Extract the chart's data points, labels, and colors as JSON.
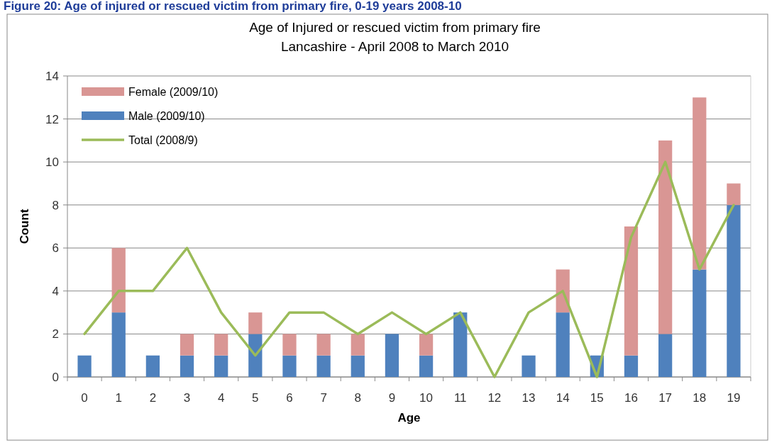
{
  "chart_data": {
    "type": "bar",
    "title": "Figure 20: Age of injured or rescued victim from primary fire, 0-19 years 2008-10",
    "subtitle": "Age of Injured or rescued victim from primary fire\nLancashire - April 2008 to March 2010",
    "xlabel": "Age",
    "ylabel": "Count",
    "categories": [
      "0",
      "1",
      "2",
      "3",
      "4",
      "5",
      "6",
      "7",
      "8",
      "9",
      "10",
      "11",
      "12",
      "13",
      "14",
      "15",
      "16",
      "17",
      "18",
      "19"
    ],
    "stacked": true,
    "ylim": [
      0,
      14
    ],
    "yticks": [
      0,
      2,
      4,
      6,
      8,
      10,
      12,
      14
    ],
    "grid": "y",
    "legend": "top left",
    "series": [
      {
        "name": "Male (2009/10)",
        "color": "#4f81bd",
        "values": [
          1,
          3,
          1,
          1,
          1,
          2,
          1,
          1,
          1,
          2,
          1,
          3,
          0,
          1,
          3,
          1,
          1,
          2,
          5,
          8
        ]
      },
      {
        "name": "Female (2009/10)",
        "color": "#d99694",
        "values": [
          0,
          3,
          0,
          1,
          1,
          1,
          1,
          1,
          1,
          0,
          1,
          0,
          0,
          0,
          2,
          0,
          6,
          9,
          8,
          1
        ]
      },
      {
        "name": "Total (2008/9)",
        "type": "line",
        "color": "#9bbb59",
        "marker": "none",
        "values": [
          2,
          4,
          4,
          6,
          3,
          1,
          3,
          3,
          2,
          3,
          2,
          3,
          0,
          3,
          4,
          0,
          6.5,
          10,
          5,
          8
        ]
      }
    ]
  }
}
